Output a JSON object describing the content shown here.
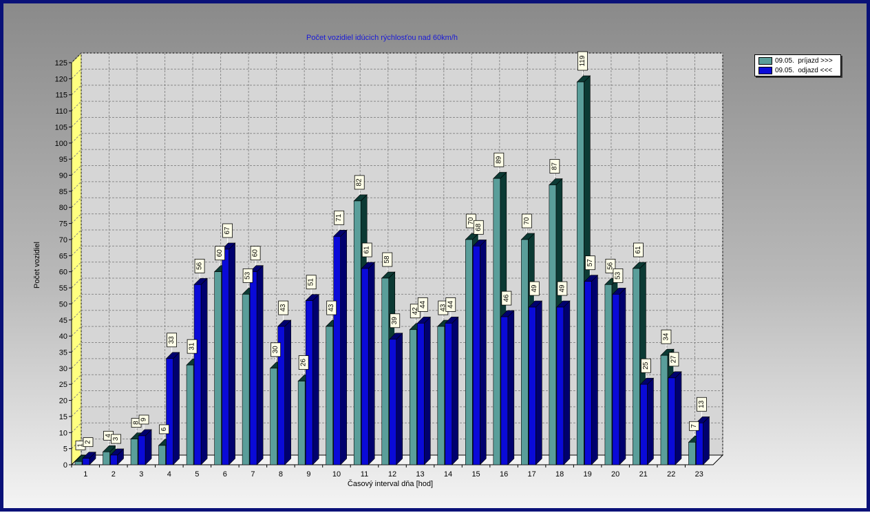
{
  "chart_data": {
    "type": "bar",
    "title": "Počet vozidiel idúcich rýchlosťou nad 60km/h",
    "xlabel": "Časový interval dňa [hod]",
    "ylabel": "Počet vozidiel",
    "ylim": [
      0,
      125
    ],
    "ytick_step": 5,
    "grid": true,
    "legend_position": "top-right",
    "categories": [
      "1",
      "2",
      "3",
      "4",
      "5",
      "6",
      "7",
      "8",
      "9",
      "10",
      "11",
      "12",
      "13",
      "14",
      "15",
      "16",
      "17",
      "18",
      "19",
      "20",
      "21",
      "22",
      "23"
    ],
    "yticks": [
      "0",
      "5",
      "10",
      "15",
      "20",
      "25",
      "30",
      "35",
      "40",
      "45",
      "50",
      "55",
      "60",
      "65",
      "70",
      "75",
      "80",
      "85",
      "90",
      "95",
      "100",
      "105",
      "110",
      "115",
      "120",
      "125"
    ],
    "series": [
      {
        "name": "09.05.  príjazd >>>",
        "color": "#5a9e9a",
        "dark_color": "#0c3a34",
        "values": [
          1,
          4,
          8,
          6,
          31,
          60,
          53,
          30,
          26,
          43,
          82,
          58,
          42,
          43,
          70,
          89,
          70,
          87,
          119,
          56,
          61,
          34,
          7
        ],
        "labels": [
          "1",
          "4",
          "8",
          "6",
          "31",
          "60",
          "53",
          "30",
          "26",
          "43",
          "82",
          "58",
          "42",
          "43",
          "70",
          "89",
          "70",
          "87",
          "119",
          "56",
          "61",
          "34",
          "7"
        ]
      },
      {
        "name": "09.05.  odjazd <<<",
        "color": "#0a0ad8",
        "dark_color": "#00006e",
        "values": [
          2,
          3,
          9,
          33,
          56,
          67,
          60,
          43,
          51,
          71,
          61,
          39,
          44,
          44,
          68,
          46,
          49,
          49,
          57,
          53,
          25,
          27,
          13
        ],
        "labels": [
          "2",
          "3",
          "9",
          "33",
          "56",
          "67",
          "60",
          "43",
          "51",
          "71",
          "61",
          "39",
          "44",
          "44",
          "68",
          "46",
          "49",
          "49",
          "57",
          "53",
          "25",
          "27",
          "13"
        ]
      }
    ]
  }
}
